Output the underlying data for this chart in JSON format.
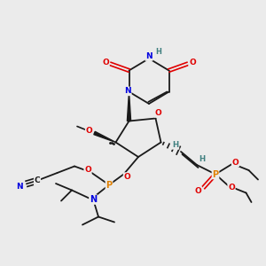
{
  "bg_color": "#ebebeb",
  "bond_color": "#1a1a1a",
  "colors": {
    "N": "#0000e0",
    "O": "#e00000",
    "P": "#e08000",
    "H": "#408080",
    "CN_N": "#0000e0"
  },
  "figsize": [
    3.0,
    3.0
  ],
  "dpi": 100
}
